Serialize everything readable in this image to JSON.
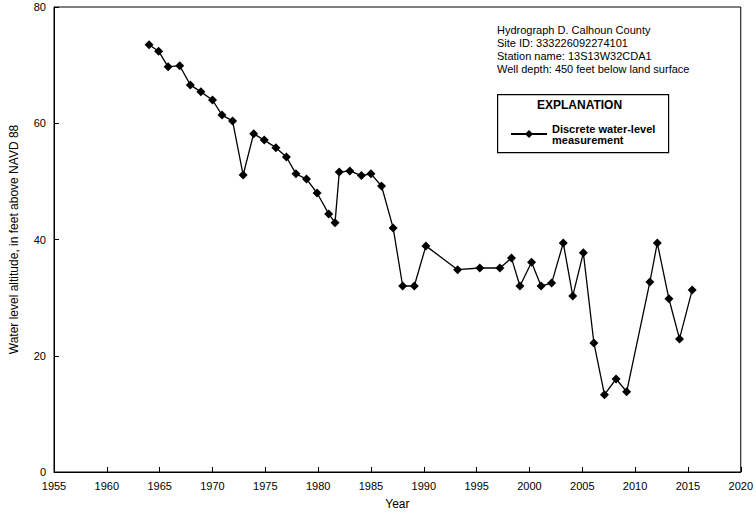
{
  "chart_data": {
    "type": "line",
    "x_label": "Year",
    "y_label": "Water level altitude, in feet above NAVD 88",
    "annotations": [
      "Hydrograph D. Calhoun County",
      "Site ID: 333226092274101",
      "Station name: 13S13W32CDA1",
      "Well depth: 450 feet below land surface"
    ],
    "legend_title": "EXPLANATION",
    "legend": "upper right",
    "grid": false,
    "marker": "diamond",
    "xlim": [
      1955,
      2020
    ],
    "xticks": [
      1955,
      1960,
      1965,
      1970,
      1975,
      1980,
      1985,
      1990,
      1995,
      2000,
      2005,
      2010,
      2015,
      2020
    ],
    "ylim": [
      0,
      80
    ],
    "yticks": [
      0,
      20,
      40,
      60,
      80
    ],
    "x": [
      1964.0,
      1964.9,
      1965.8,
      1966.9,
      1967.9,
      1968.9,
      1970.0,
      1970.9,
      1971.9,
      1972.9,
      1973.9,
      1974.9,
      1976.0,
      1977.0,
      1977.9,
      1978.9,
      1979.9,
      1981.0,
      1981.6,
      1982.0,
      1983.0,
      1984.1,
      1985.0,
      1986.0,
      1987.1,
      1988.0,
      1989.1,
      1990.2,
      1993.2,
      1995.3,
      1997.2,
      1998.3,
      1999.1,
      2000.2,
      2001.1,
      2002.1,
      2003.2,
      2004.1,
      2005.1,
      2006.1,
      2007.1,
      2008.2,
      2009.2,
      2011.4,
      2012.1,
      2013.2,
      2014.2,
      2015.4
    ],
    "series": [
      {
        "name": "Discrete water-level measurement",
        "color": "#000000",
        "values": [
          73.5,
          72.4,
          69.7,
          69.9,
          66.6,
          65.4,
          64.0,
          61.4,
          60.4,
          51.1,
          58.2,
          57.1,
          55.8,
          54.2,
          51.3,
          50.4,
          48.0,
          44.4,
          42.9,
          51.6,
          51.8,
          51.0,
          51.3,
          49.2,
          42.0,
          32.0,
          32.0,
          38.9,
          34.8,
          35.1,
          35.1,
          36.8,
          32.0,
          36.1,
          32.0,
          32.5,
          39.4,
          30.3,
          37.7,
          22.2,
          13.3,
          16.0,
          13.8,
          32.7,
          39.4,
          29.8,
          22.9,
          31.3
        ]
      }
    ]
  }
}
